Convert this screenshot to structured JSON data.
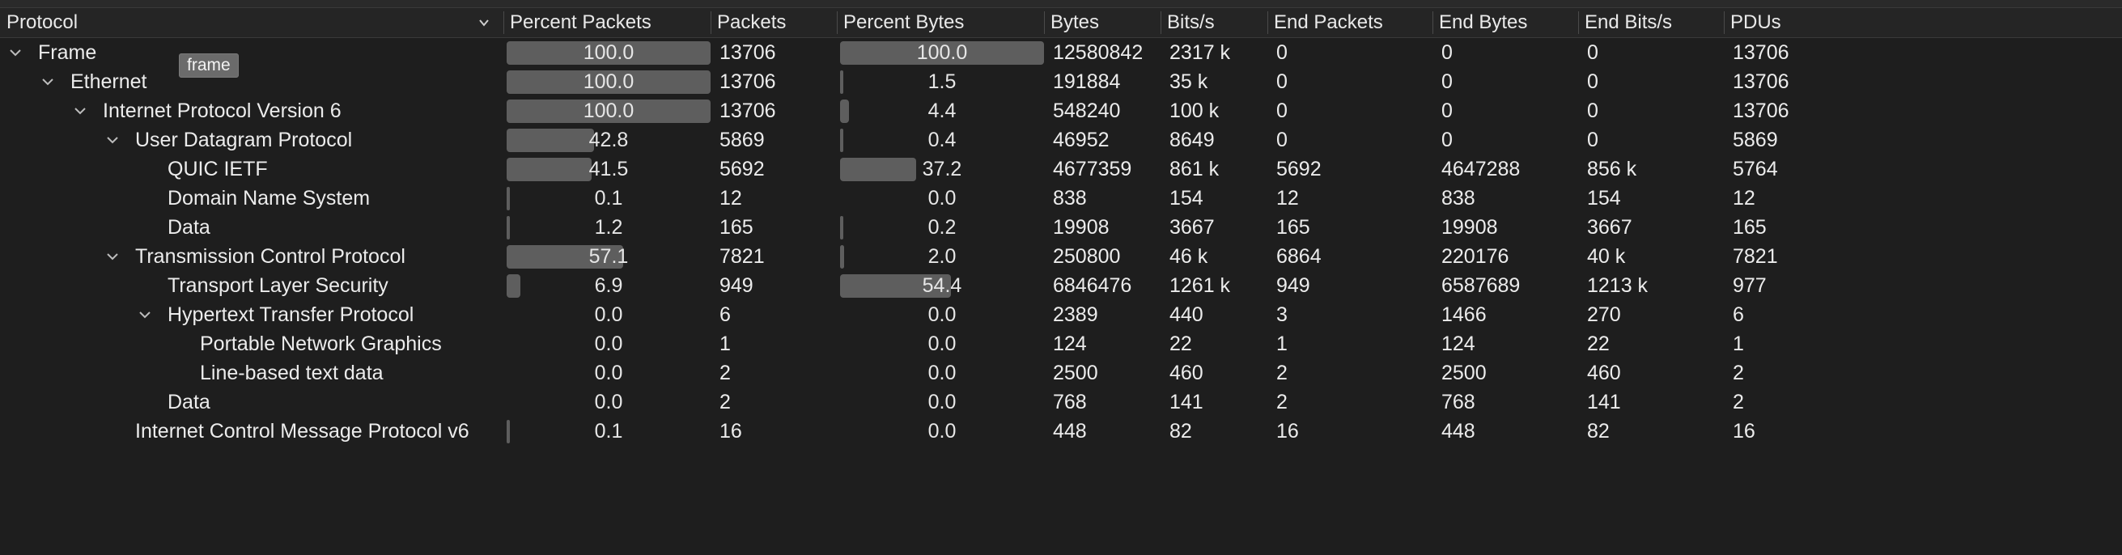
{
  "header": {
    "columns": [
      "Protocol",
      "Percent Packets",
      "Packets",
      "Percent Bytes",
      "Bytes",
      "Bits/s",
      "End Packets",
      "End Bytes",
      "End Bits/s",
      "PDUs"
    ]
  },
  "tooltip": "frame",
  "rows": [
    {
      "name": "Frame",
      "level": 0,
      "expanded": true,
      "pct_packets": "100.0",
      "packets": "13706",
      "pct_bytes": "100.0",
      "bytes": "12580842",
      "bits": "2317 k",
      "end_packets": "0",
      "end_bytes": "0",
      "end_bits": "0",
      "pdus": "13706"
    },
    {
      "name": "Ethernet",
      "level": 1,
      "expanded": true,
      "pct_packets": "100.0",
      "packets": "13706",
      "pct_bytes": "1.5",
      "bytes": "191884",
      "bits": "35 k",
      "end_packets": "0",
      "end_bytes": "0",
      "end_bits": "0",
      "pdus": "13706"
    },
    {
      "name": "Internet Protocol Version 6",
      "level": 2,
      "expanded": true,
      "pct_packets": "100.0",
      "packets": "13706",
      "pct_bytes": "4.4",
      "bytes": "548240",
      "bits": "100 k",
      "end_packets": "0",
      "end_bytes": "0",
      "end_bits": "0",
      "pdus": "13706"
    },
    {
      "name": "User Datagram Protocol",
      "level": 3,
      "expanded": true,
      "pct_packets": "42.8",
      "packets": "5869",
      "pct_bytes": "0.4",
      "bytes": "46952",
      "bits": "8649",
      "end_packets": "0",
      "end_bytes": "0",
      "end_bits": "0",
      "pdus": "5869"
    },
    {
      "name": "QUIC IETF",
      "level": 4,
      "expanded": null,
      "pct_packets": "41.5",
      "packets": "5692",
      "pct_bytes": "37.2",
      "bytes": "4677359",
      "bits": "861 k",
      "end_packets": "5692",
      "end_bytes": "4647288",
      "end_bits": "856 k",
      "pdus": "5764"
    },
    {
      "name": "Domain Name System",
      "level": 4,
      "expanded": null,
      "pct_packets": "0.1",
      "packets": "12",
      "pct_bytes": "0.0",
      "bytes": "838",
      "bits": "154",
      "end_packets": "12",
      "end_bytes": "838",
      "end_bits": "154",
      "pdus": "12"
    },
    {
      "name": "Data",
      "level": 4,
      "expanded": null,
      "pct_packets": "1.2",
      "packets": "165",
      "pct_bytes": "0.2",
      "bytes": "19908",
      "bits": "3667",
      "end_packets": "165",
      "end_bytes": "19908",
      "end_bits": "3667",
      "pdus": "165"
    },
    {
      "name": "Transmission Control Protocol",
      "level": 3,
      "expanded": true,
      "pct_packets": "57.1",
      "packets": "7821",
      "pct_bytes": "2.0",
      "bytes": "250800",
      "bits": "46 k",
      "end_packets": "6864",
      "end_bytes": "220176",
      "end_bits": "40 k",
      "pdus": "7821"
    },
    {
      "name": "Transport Layer Security",
      "level": 4,
      "expanded": null,
      "pct_packets": "6.9",
      "packets": "949",
      "pct_bytes": "54.4",
      "bytes": "6846476",
      "bits": "1261 k",
      "end_packets": "949",
      "end_bytes": "6587689",
      "end_bits": "1213 k",
      "pdus": "977"
    },
    {
      "name": "Hypertext Transfer Protocol",
      "level": 4,
      "expanded": true,
      "pct_packets": "0.0",
      "packets": "6",
      "pct_bytes": "0.0",
      "bytes": "2389",
      "bits": "440",
      "end_packets": "3",
      "end_bytes": "1466",
      "end_bits": "270",
      "pdus": "6"
    },
    {
      "name": "Portable Network Graphics",
      "level": 5,
      "expanded": null,
      "pct_packets": "0.0",
      "packets": "1",
      "pct_bytes": "0.0",
      "bytes": "124",
      "bits": "22",
      "end_packets": "1",
      "end_bytes": "124",
      "end_bits": "22",
      "pdus": "1"
    },
    {
      "name": "Line-based text data",
      "level": 5,
      "expanded": null,
      "pct_packets": "0.0",
      "packets": "2",
      "pct_bytes": "0.0",
      "bytes": "2500",
      "bits": "460",
      "end_packets": "2",
      "end_bytes": "2500",
      "end_bits": "460",
      "pdus": "2"
    },
    {
      "name": "Data",
      "level": 4,
      "expanded": null,
      "pct_packets": "0.0",
      "packets": "2",
      "pct_bytes": "0.0",
      "bytes": "768",
      "bits": "141",
      "end_packets": "2",
      "end_bytes": "768",
      "end_bits": "141",
      "pdus": "2"
    },
    {
      "name": "Internet Control Message Protocol v6",
      "level": 3,
      "expanded": null,
      "pct_packets": "0.1",
      "packets": "16",
      "pct_bytes": "0.0",
      "bytes": "448",
      "bits": "82",
      "end_packets": "16",
      "end_bytes": "448",
      "end_bits": "82",
      "pdus": "16"
    }
  ]
}
